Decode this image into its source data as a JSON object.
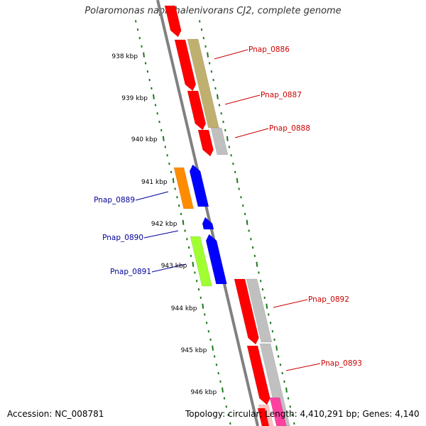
{
  "title": "Polaromonas naphthalenivorans CJ2, complete genome",
  "footer": {
    "accession": "Accession: NC_008781",
    "topology": "Topology: circular; Length: 4,410,291 bp; Genes: 4,140"
  },
  "scale_labels": [
    "938 kbp",
    "939 kbp",
    "940 kbp",
    "941 kbp",
    "942 kbp",
    "943 kbp",
    "944 kbp",
    "945 kbp",
    "946 kbp"
  ],
  "colors": {
    "backbone": "#808080",
    "forward_label": "#cc0000",
    "reverse_label": "#000099",
    "tick": "#1a7a1a",
    "red": "#ff0000",
    "olive": "#c0b070",
    "grey": "#c0c0c0",
    "blue": "#0000ff",
    "orange": "#ff8c00",
    "lime": "#a0ff30",
    "pink": "#ff40a0",
    "salmon": "#ffc0c0"
  },
  "genes": [
    {
      "name": "Pnap_0886",
      "strand": "forward"
    },
    {
      "name": "Pnap_0887",
      "strand": "forward"
    },
    {
      "name": "Pnap_0888",
      "strand": "forward"
    },
    {
      "name": "Pnap_0889",
      "strand": "reverse"
    },
    {
      "name": "Pnap_0890",
      "strand": "reverse"
    },
    {
      "name": "Pnap_0891",
      "strand": "reverse"
    },
    {
      "name": "Pnap_0892",
      "strand": "forward"
    },
    {
      "name": "Pnap_0893",
      "strand": "forward"
    }
  ]
}
